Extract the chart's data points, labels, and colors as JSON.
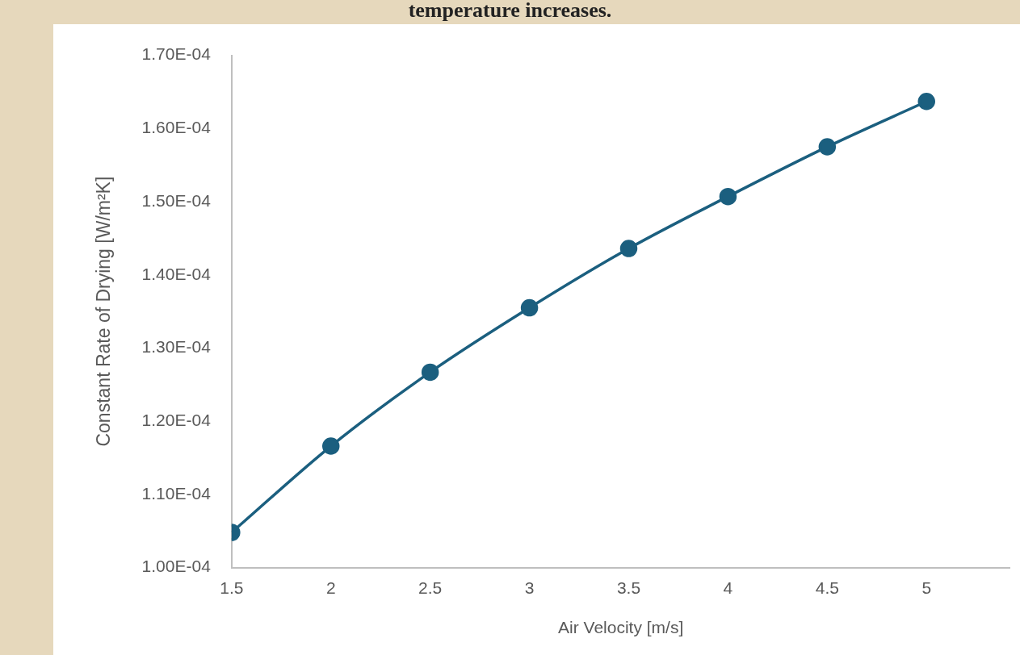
{
  "chart_data": {
    "type": "line",
    "title": "temperature increases.",
    "xlabel": "Air Velocity [m/s]",
    "ylabel": "Constant Rate of Drying [W/m²K]",
    "x": [
      1.5,
      2,
      2.5,
      3,
      3.5,
      4,
      4.5,
      5
    ],
    "series": [
      {
        "color": "#1b5f7f",
        "values": [
          0.0001048,
          0.0001166,
          0.0001267,
          0.0001355,
          0.0001436,
          0.0001507,
          0.0001575,
          0.0001637
        ]
      }
    ],
    "xlim": [
      1.5,
      5.42
    ],
    "xticks": [
      1.5,
      2,
      2.5,
      3,
      3.5,
      4,
      4.5,
      5
    ],
    "ylim": [
      0.0001,
      0.00017
    ],
    "yticks": [
      {
        "value": 0.0001,
        "label": "1.00E-04"
      },
      {
        "value": 0.00011,
        "label": "1.10E-04"
      },
      {
        "value": 0.00012,
        "label": "1.20E-04"
      },
      {
        "value": 0.00013,
        "label": "1.30E-04"
      },
      {
        "value": 0.00014,
        "label": "1.40E-04"
      },
      {
        "value": 0.00015,
        "label": "1.50E-04"
      },
      {
        "value": 0.00016,
        "label": "1.60E-04"
      },
      {
        "value": 0.00017,
        "label": "1.70E-04"
      }
    ],
    "grid": false,
    "legend": false,
    "marker": "circle",
    "line_style": "solid"
  }
}
